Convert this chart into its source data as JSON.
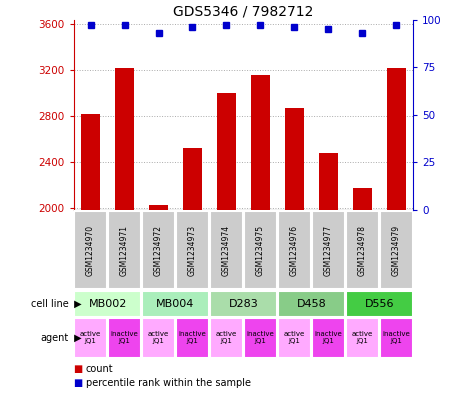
{
  "title": "GDS5346 / 7982712",
  "samples": [
    "GSM1234970",
    "GSM1234971",
    "GSM1234972",
    "GSM1234973",
    "GSM1234974",
    "GSM1234975",
    "GSM1234976",
    "GSM1234977",
    "GSM1234978",
    "GSM1234979"
  ],
  "counts": [
    2820,
    3220,
    2020,
    2520,
    3000,
    3160,
    2870,
    2480,
    2170,
    3220
  ],
  "percentile_ranks": [
    97,
    97,
    93,
    96,
    97,
    97,
    96,
    95,
    93,
    97
  ],
  "ylim_left": [
    1980,
    3640
  ],
  "ylim_right": [
    0,
    100
  ],
  "yticks_left": [
    2000,
    2400,
    2800,
    3200,
    3600
  ],
  "yticks_right": [
    0,
    25,
    50,
    75,
    100
  ],
  "bar_color": "#cc0000",
  "dot_color": "#0000cc",
  "cell_lines": [
    {
      "label": "MB002",
      "cols": [
        0,
        1
      ],
      "color": "#ccffcc"
    },
    {
      "label": "MB004",
      "cols": [
        2,
        3
      ],
      "color": "#aaeebb"
    },
    {
      "label": "D283",
      "cols": [
        4,
        5
      ],
      "color": "#aaddaa"
    },
    {
      "label": "D458",
      "cols": [
        6,
        7
      ],
      "color": "#88cc88"
    },
    {
      "label": "D556",
      "cols": [
        8,
        9
      ],
      "color": "#44cc44"
    }
  ],
  "agents": [
    "active\nJQ1",
    "inactive\nJQ1",
    "active\nJQ1",
    "inactive\nJQ1",
    "active\nJQ1",
    "inactive\nJQ1",
    "active\nJQ1",
    "inactive\nJQ1",
    "active\nJQ1",
    "inactive\nJQ1"
  ],
  "agent_colors_active": "#ffaaff",
  "agent_colors_inactive": "#ee44ee",
  "sample_box_color": "#cccccc",
  "legend_count_color": "#cc0000",
  "legend_pct_color": "#0000cc",
  "grid_color": "#aaaaaa",
  "left_label_color": "#cc0000",
  "right_label_color": "#0000cc",
  "bg_color": "#ffffff"
}
